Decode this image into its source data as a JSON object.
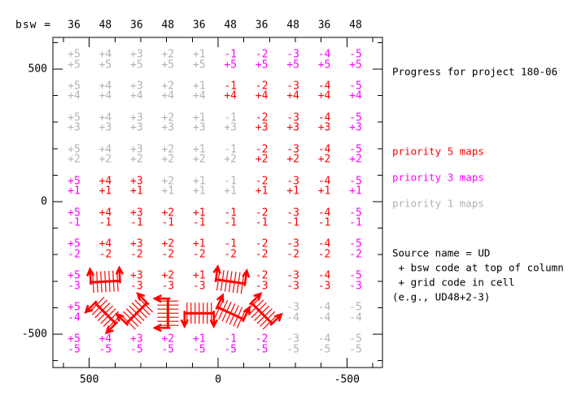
{
  "bsw_label": "bsw =",
  "colors": {
    "red": "#ff0000",
    "magenta": "#ff00ff",
    "gray": "#b2b2b2",
    "black": "#000000"
  },
  "grid": {
    "column_bsw": [
      "36",
      "48",
      "36",
      "48",
      "36",
      "48",
      "36",
      "48",
      "36",
      "48"
    ],
    "col_codes": [
      "+5",
      "+4",
      "+3",
      "+2",
      "+1",
      "-1",
      "-2",
      "-3",
      "-4",
      "-5"
    ],
    "row_codes": [
      "+5",
      "+4",
      "+3",
      "+2",
      "+1",
      "-1",
      "-2",
      "-3",
      "-4",
      "-5"
    ],
    "status": [
      [
        "p1",
        "p1",
        "p1",
        "p1",
        "p1",
        "p3",
        "p3",
        "p3",
        "p3",
        "p3"
      ],
      [
        "p1",
        "p1",
        "p1",
        "p1",
        "p1",
        "p5",
        "p5",
        "p5",
        "p5",
        "p3"
      ],
      [
        "p1",
        "p1",
        "p1",
        "p1",
        "p1",
        "p1",
        "p5",
        "p5",
        "p5",
        "p3"
      ],
      [
        "p1",
        "p1",
        "p1",
        "p1",
        "p1",
        "p1",
        "p5",
        "p5",
        "p5",
        "p3"
      ],
      [
        "p3",
        "p5",
        "p5",
        "p1",
        "p1",
        "p1",
        "p5",
        "p5",
        "p5",
        "p3"
      ],
      [
        "p3",
        "p5",
        "p5",
        "p5",
        "p5",
        "p5",
        "p5",
        "p5",
        "p5",
        "p3"
      ],
      [
        "p3",
        "p5",
        "p5",
        "p5",
        "p5",
        "p5",
        "p5",
        "p5",
        "p5",
        "p3"
      ],
      [
        "p3",
        "scan",
        "p5",
        "p5",
        "p5",
        "scan",
        "p5",
        "p5",
        "p5",
        "p3"
      ],
      [
        "p3",
        "scan",
        "scan",
        "scan",
        "scan",
        "scan",
        "scan",
        "p1",
        "p1",
        "p1"
      ],
      [
        "p3",
        "p3",
        "p3",
        "p3",
        "p3",
        "p3",
        "p3",
        "p1",
        "p1",
        "p1"
      ]
    ],
    "scan_symbols": [
      {
        "row": "-3",
        "col": "+4",
        "angle": -3
      },
      {
        "row": "-3",
        "col": "-1",
        "angle": 8
      },
      {
        "row": "-4",
        "col": "+4",
        "angle": -135
      },
      {
        "row": "-4",
        "col": "+3",
        "angle": -45
      },
      {
        "row": "-4",
        "col": "+2",
        "angle": -90
      },
      {
        "row": "-4",
        "col": "+1",
        "angle": 180
      },
      {
        "row": "-4",
        "col": "-1",
        "angle": 25
      },
      {
        "row": "-4",
        "col": "-2",
        "angle": 45
      }
    ]
  },
  "axes": {
    "x_ticks": [
      {
        "value": 500,
        "label": "500"
      },
      {
        "value": 0,
        "label": "0"
      },
      {
        "value": -500,
        "label": "-500"
      }
    ],
    "y_ticks": [
      {
        "value": 500,
        "label": "500"
      },
      {
        "value": 0,
        "label": "0"
      },
      {
        "value": -500,
        "label": "-500"
      }
    ]
  },
  "annotations": [
    {
      "text": "Progress for project 180-06",
      "color": "black"
    },
    {
      "text": "priority 5 maps",
      "color": "red"
    },
    {
      "text": "priority 3 maps",
      "color": "magenta"
    },
    {
      "text": "priority 1 maps",
      "color": "gray"
    },
    {
      "text": "Source name = UD",
      "color": "black"
    },
    {
      "text": " + bsw code at top of column",
      "color": "black"
    },
    {
      "text": " + grid code in cell",
      "color": "black"
    },
    {
      "text": "(e.g., UD48+2-3)",
      "color": "black"
    }
  ],
  "chart_data": {
    "type": "heatmap",
    "title": "Progress for project 180-06",
    "xlabel": "",
    "ylabel": "",
    "x_tick_labels": [
      500,
      0,
      -500
    ],
    "y_tick_labels": [
      500,
      0,
      -500
    ],
    "xlim_approx": [
      640,
      -640
    ],
    "ylim_approx": [
      -630,
      630
    ],
    "grid_on": false,
    "legend_position": "right",
    "columns_bsw": [
      36,
      48,
      36,
      48,
      36,
      48,
      36,
      48,
      36,
      48
    ],
    "column_grid_codes": [
      "+5",
      "+4",
      "+3",
      "+2",
      "+1",
      "-1",
      "-2",
      "-3",
      "-4",
      "-5"
    ],
    "row_grid_codes_top_to_bottom": [
      "+5",
      "+4",
      "+3",
      "+2",
      "+1",
      "-1",
      "-2",
      "-3",
      "-4",
      "-5"
    ],
    "cell_status_matrix_top_to_bottom": [
      [
        "p1",
        "p1",
        "p1",
        "p1",
        "p1",
        "p3",
        "p3",
        "p3",
        "p3",
        "p3"
      ],
      [
        "p1",
        "p1",
        "p1",
        "p1",
        "p1",
        "p5",
        "p5",
        "p5",
        "p5",
        "p3"
      ],
      [
        "p1",
        "p1",
        "p1",
        "p1",
        "p1",
        "p1",
        "p5",
        "p5",
        "p5",
        "p3"
      ],
      [
        "p1",
        "p1",
        "p1",
        "p1",
        "p1",
        "p1",
        "p5",
        "p5",
        "p5",
        "p3"
      ],
      [
        "p3",
        "p5",
        "p5",
        "p1",
        "p1",
        "p1",
        "p5",
        "p5",
        "p5",
        "p3"
      ],
      [
        "p3",
        "p5",
        "p5",
        "p5",
        "p5",
        "p5",
        "p5",
        "p5",
        "p5",
        "p3"
      ],
      [
        "p3",
        "p5",
        "p5",
        "p5",
        "p5",
        "p5",
        "p5",
        "p5",
        "p5",
        "p3"
      ],
      [
        "p3",
        "scan",
        "p5",
        "p5",
        "p5",
        "scan",
        "p5",
        "p5",
        "p5",
        "p3"
      ],
      [
        "p3",
        "scan",
        "scan",
        "scan",
        "scan",
        "scan",
        "scan",
        "p1",
        "p1",
        "p1"
      ],
      [
        "p3",
        "p3",
        "p3",
        "p3",
        "p3",
        "p3",
        "p3",
        "p1",
        "p1",
        "p1"
      ]
    ],
    "legend": [
      {
        "label": "priority 5 maps",
        "status": "p5",
        "color": "#ff0000"
      },
      {
        "label": "priority 3 maps",
        "status": "p3",
        "color": "#ff00ff"
      },
      {
        "label": "priority 1 maps",
        "status": "p1",
        "color": "#b2b2b2"
      }
    ],
    "notes": [
      "Source name = UD",
      " + bsw code at top of column",
      " + grid code in cell",
      "(e.g., UD48+2-3)"
    ]
  }
}
